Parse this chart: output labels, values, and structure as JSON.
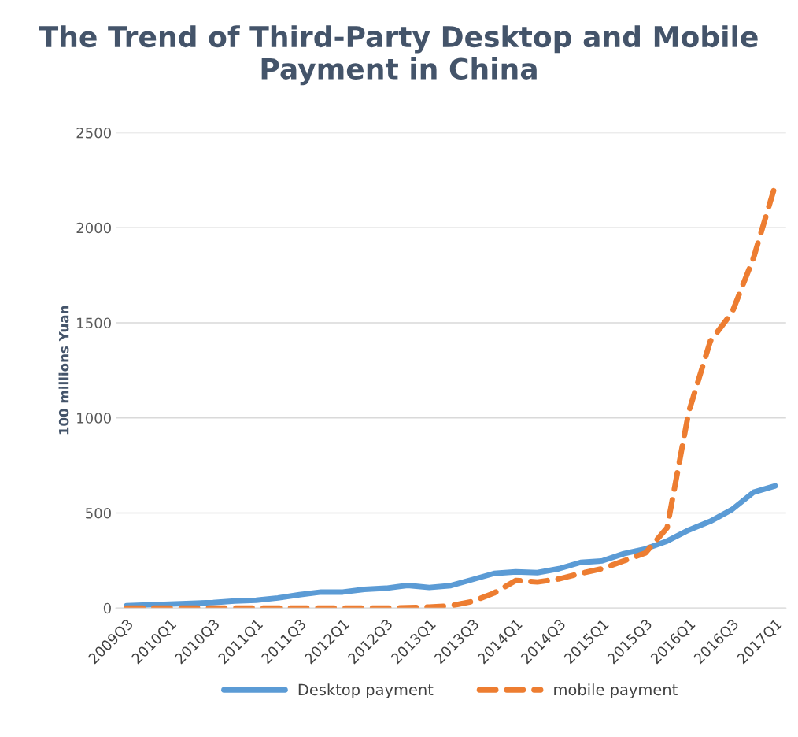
{
  "chart_data": {
    "type": "line",
    "title": "The Trend of Third-Party Desktop and Mobile Payment in China",
    "ylabel": "100 millions Yuan",
    "categories": [
      "2009Q3",
      null,
      "2010Q1",
      null,
      "2010Q3",
      null,
      "2011Q1",
      null,
      "2011Q3",
      null,
      "2012Q1",
      null,
      "2012Q3",
      null,
      "2013Q1",
      null,
      "2013Q3",
      null,
      "2014Q1",
      null,
      "2014Q3",
      null,
      "2015Q1",
      null,
      "2015Q3",
      null,
      "2016Q1",
      null,
      "2016Q3",
      null,
      "2017Q1"
    ],
    "series": [
      {
        "name": "Desktop payment",
        "color": "#5b9bd5",
        "line_style": "solid",
        "values": [
          12,
          17,
          21,
          25,
          29,
          37,
          41,
          53,
          70,
          84,
          84,
          98,
          104,
          119,
          108,
          118,
          150,
          182,
          190,
          186,
          207,
          240,
          248,
          286,
          311,
          352,
          410,
          456,
          518,
          609,
          642
        ]
      },
      {
        "name": "mobile payment",
        "color": "#ed7d31",
        "line_style": "dashed",
        "values": [
          0,
          0,
          0,
          0,
          0,
          0,
          0,
          0,
          0,
          0,
          0,
          0,
          0,
          2,
          5,
          12,
          35,
          79,
          145,
          137,
          153,
          182,
          207,
          248,
          290,
          422,
          1031,
          1404,
          1553,
          1843,
          2224
        ]
      }
    ],
    "ylim": [
      0,
      2500
    ],
    "yticks": [
      0,
      500,
      1000,
      1500,
      2000,
      2500
    ],
    "grid": "y",
    "legend": "bottom",
    "marker": "none"
  }
}
